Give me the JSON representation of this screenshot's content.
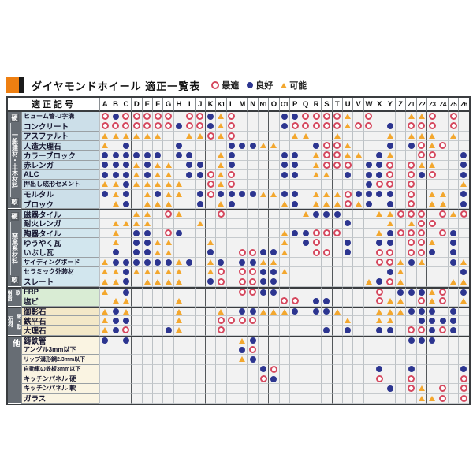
{
  "title_bar": {
    "title": "ダイヤモンドホイール 適正一覧表",
    "legend": [
      {
        "type": "best",
        "label": "最適"
      },
      {
        "type": "good",
        "label": "良好"
      },
      {
        "type": "fair",
        "label": "可能"
      }
    ]
  },
  "colors": {
    "best_ring": "#d5485e",
    "good_dot": "#2c3590",
    "fair_triangle": "#f3a72e",
    "accent_orange": "#ee7f11",
    "group_gray": "#676d74"
  },
  "table": {
    "corner_label": "適正記号",
    "columns": [
      "A",
      "B",
      "C",
      "D",
      "E",
      "F",
      "G",
      "H",
      "I",
      "J",
      "K",
      "K1",
      "L",
      "M",
      "N",
      "N1",
      "O",
      "O1",
      "P",
      "Q",
      "R",
      "S",
      "T",
      "U",
      "V",
      "W",
      "X",
      "Y",
      "Z",
      "Z1",
      "Z2",
      "Z3",
      "Z4",
      "Z5",
      "Z6"
    ],
    "symbol_map": {
      "o": "best",
      "b": "good",
      "y": "fair",
      ".": "none"
    },
    "heavy_separator_cols": [
      3,
      10,
      16,
      22,
      26,
      31
    ],
    "groups": [
      {
        "name": "一般建材・土木材料",
        "hard": "硬",
        "soft": "軟",
        "label_bg": "#ccdfe9",
        "rows": [
          {
            "label": "ヒューム管-U字溝",
            "cells": "obooooo.oobyo....bbooooy.o...yyo.o."
          },
          {
            "label": "コンクリート",
            "cells": "oooooooboobyo....boooooyoo.b.ooo.o."
          },
          {
            "label": "アスファルト",
            "cells": "yyyyyy..yyoyo.....yy..y....y.yyy.y."
          },
          {
            "label": "人造大理石",
            "cells": "y.b....b....bbbyy...booy...b.boyo.."
          },
          {
            "label": "カラーブロック",
            "cells": "bbbbbb.bb..yb....bb.yooyy.by..oo..b"
          },
          {
            "label": "赤レンガ",
            "cells": "bbbybyy.bb.yb....bb.yooo.bbo.oyy..b"
          },
          {
            "label": "ALC",
            "cells": "bbbybyy.bboyo....bb.yy.b.bbo.obo..b"
          },
          {
            "label": "押出し成形セメント",
            "cells": "yybyyyyy..oyo............boo.o....y"
          },
          {
            "label": "モルタル",
            "cells": "byb.ybyy.bobbbbyybb.yyyobbbb.o.yy.b"
          },
          {
            "label": "ブロック",
            "cells": ".yb.yyy..b.yb....yb.yyyoyb.b.o.yy.b"
          }
        ]
      },
      {
        "name": "窯業系材料",
        "hard": "硬",
        "soft": "軟",
        "label_bg": "#d2e6ee",
        "rows": [
          {
            "label": "磁器タイル",
            "cells": "...yy.oy...o.......ybbb...yyooo.oyo"
          },
          {
            "label": "耐火レンガ",
            "cells": ".yyyy....y.............b...y.yoo..."
          },
          {
            "label": "陶器タイル",
            "cells": ".y.bb.ob.........ybbooo...ybooo.ob."
          },
          {
            "label": "ゆうやく瓦",
            "cells": ".y.bbyy...y......y.bo..b..bb.ooy.b."
          },
          {
            "label": "いぶし瓦",
            "cells": ".b.bbyy...b..oobby..oo.b..oo.oob.b."
          },
          {
            "label": "サイディングボード",
            "cells": "ybbbbbbyb.yb.bbyy.........ooyby..by"
          },
          {
            "label": "セラミック外装材",
            "cells": "yybyyyyy..yo.oobby.........by.....b"
          },
          {
            "label": "スレート",
            "cells": "yyb.yyyy..bo.oobb........yboy....yy"
          }
        ]
      },
      {
        "name": "樹脂系",
        "hard": "硬",
        "soft": "軟",
        "label_bg": "#d9ecd4",
        "rows": [
          {
            "label": "FRP",
            "cells": "y.b..........oobb.........o.bbbyo.b"
          },
          {
            "label": "塩ビ",
            "cells": ".yy....y.........oo.bb....oyy.oyo.y"
          }
        ]
      },
      {
        "name": "石材",
        "hard": "硬",
        "soft": "軟",
        "label_bg": "#f3e8c8",
        "rows": [
          {
            "label": "御影石",
            "cells": "yby....y...y.bbyyyb.bby...yyybbb.b."
          },
          {
            "label": "鉄平石",
            "cells": "ybb....y...oooo........y..yy..bbbb."
          },
          {
            "label": "大理石",
            "cells": "ybo...by...o.........b.b..bb.oobob."
          }
        ]
      },
      {
        "name": "他",
        "hard": null,
        "soft": null,
        "label_bg": "#faf4e2",
        "rows": [
          {
            "label": "鋳鉄管",
            "cells": "b.b..........yb..............bbb..."
          },
          {
            "label": "アングル3mm以下",
            "cells": ".............bo...................."
          },
          {
            "label": "リップ溝形鋼2.3mm以下",
            "cells": ".............yb...................."
          },
          {
            "label": "自動車の鉄板3mm以下",
            "cells": "...............bo.........b..b....b"
          },
          {
            "label": "キッチンパネル 硬",
            "cells": "...............ob.........o..o....o"
          },
          {
            "label": "キッチンパネル 軟",
            "cells": "...........................b.oy.o.o"
          },
          {
            "label": "ガラス",
            "cells": "..............................yyo.o"
          }
        ]
      }
    ]
  }
}
